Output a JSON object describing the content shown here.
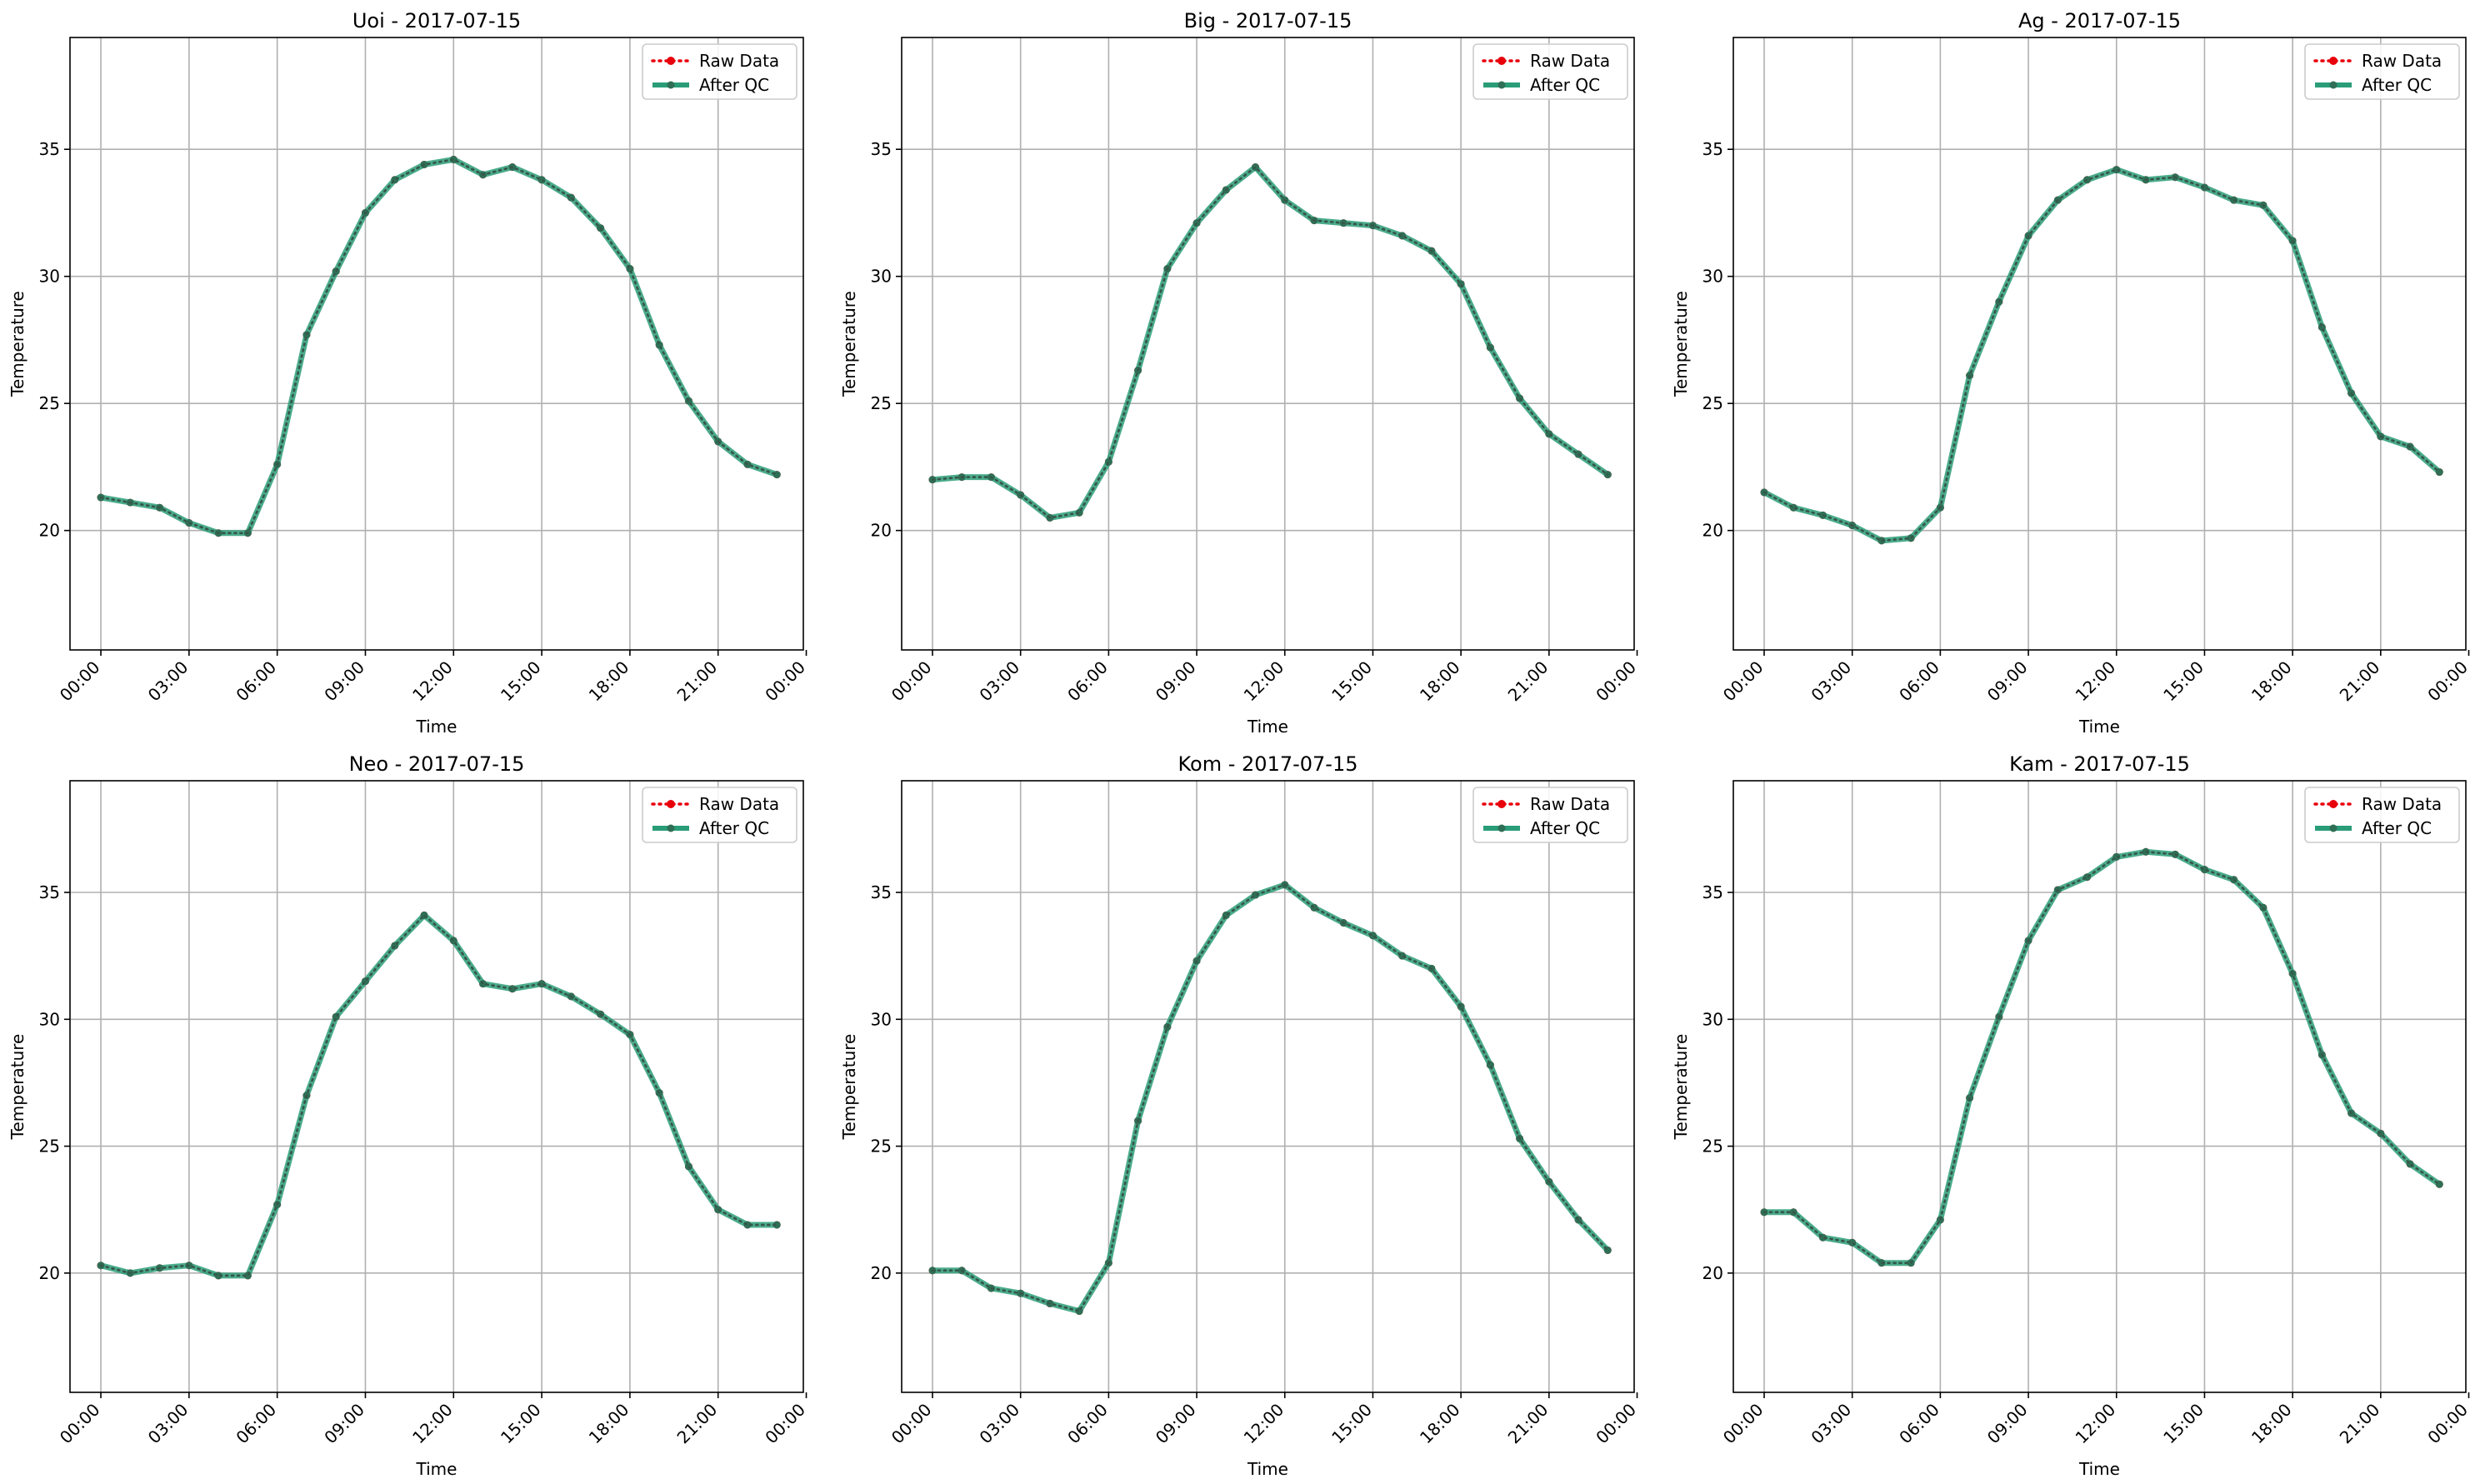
{
  "chart_data": [
    {
      "type": "line",
      "title": "Uoi - 2017-07-15",
      "xlabel": "Time",
      "ylabel": "Temperature",
      "xlim": [
        -1.05,
        23.9
      ],
      "ylim": [
        15.3,
        39.4
      ],
      "xticks": [
        0,
        3,
        6,
        9,
        12,
        15,
        18,
        21,
        24
      ],
      "xticklabels": [
        "00:00",
        "03:00",
        "06:00",
        "09:00",
        "12:00",
        "15:00",
        "18:00",
        "21:00",
        "00:00"
      ],
      "yticks": [
        20,
        25,
        30,
        35
      ],
      "grid": true,
      "legend_position": "top-right",
      "x": [
        0,
        1,
        2,
        3,
        4,
        5,
        6,
        7,
        8,
        9,
        10,
        11,
        12,
        13,
        14,
        15,
        16,
        17,
        18,
        19,
        20,
        21,
        22,
        23
      ],
      "series": [
        {
          "name": "Raw Data",
          "color": "#e8000b",
          "style": "dotted",
          "values": [
            21.3,
            21.1,
            20.9,
            20.3,
            19.9,
            19.9,
            22.6,
            27.7,
            30.2,
            32.5,
            33.8,
            34.4,
            34.6,
            34.0,
            34.3,
            33.8,
            33.1,
            31.9,
            30.3,
            27.3,
            25.1,
            23.5,
            22.6,
            22.2
          ]
        },
        {
          "name": "After QC",
          "color": "#2a9d78",
          "style": "solid",
          "values": [
            21.3,
            21.1,
            20.9,
            20.3,
            19.9,
            19.9,
            22.6,
            27.7,
            30.2,
            32.5,
            33.8,
            34.4,
            34.6,
            34.0,
            34.3,
            33.8,
            33.1,
            31.9,
            30.3,
            27.3,
            25.1,
            23.5,
            22.6,
            22.2
          ]
        }
      ]
    },
    {
      "type": "line",
      "title": "Big - 2017-07-15",
      "xlabel": "Time",
      "ylabel": "Temperature",
      "xlim": [
        -1.05,
        23.9
      ],
      "ylim": [
        15.3,
        39.4
      ],
      "xticks": [
        0,
        3,
        6,
        9,
        12,
        15,
        18,
        21,
        24
      ],
      "xticklabels": [
        "00:00",
        "03:00",
        "06:00",
        "09:00",
        "12:00",
        "15:00",
        "18:00",
        "21:00",
        "00:00"
      ],
      "yticks": [
        20,
        25,
        30,
        35
      ],
      "grid": true,
      "legend_position": "top-right",
      "x": [
        0,
        1,
        2,
        3,
        4,
        5,
        6,
        7,
        8,
        9,
        10,
        11,
        12,
        13,
        14,
        15,
        16,
        17,
        18,
        19,
        20,
        21,
        22,
        23
      ],
      "series": [
        {
          "name": "Raw Data",
          "color": "#e8000b",
          "style": "dotted",
          "values": [
            22.0,
            22.1,
            22.1,
            21.4,
            20.5,
            20.7,
            22.7,
            26.3,
            30.3,
            32.1,
            33.4,
            34.3,
            33.0,
            32.2,
            32.1,
            32.0,
            31.6,
            31.0,
            29.7,
            27.2,
            25.2,
            23.8,
            23.0,
            22.2
          ]
        },
        {
          "name": "After QC",
          "color": "#2a9d78",
          "style": "solid",
          "values": [
            22.0,
            22.1,
            22.1,
            21.4,
            20.5,
            20.7,
            22.7,
            26.3,
            30.3,
            32.1,
            33.4,
            34.3,
            33.0,
            32.2,
            32.1,
            32.0,
            31.6,
            31.0,
            29.7,
            27.2,
            25.2,
            23.8,
            23.0,
            22.2
          ]
        }
      ]
    },
    {
      "type": "line",
      "title": "Ag - 2017-07-15",
      "xlabel": "Time",
      "ylabel": "Temperature",
      "xlim": [
        -1.05,
        23.9
      ],
      "ylim": [
        15.3,
        39.4
      ],
      "xticks": [
        0,
        3,
        6,
        9,
        12,
        15,
        18,
        21,
        24
      ],
      "xticklabels": [
        "00:00",
        "03:00",
        "06:00",
        "09:00",
        "12:00",
        "15:00",
        "18:00",
        "21:00",
        "00:00"
      ],
      "yticks": [
        20,
        25,
        30,
        35
      ],
      "grid": true,
      "legend_position": "top-right",
      "x": [
        0,
        1,
        2,
        3,
        4,
        5,
        6,
        7,
        8,
        9,
        10,
        11,
        12,
        13,
        14,
        15,
        16,
        17,
        18,
        19,
        20,
        21,
        22,
        23
      ],
      "series": [
        {
          "name": "Raw Data",
          "color": "#e8000b",
          "style": "dotted",
          "values": [
            21.5,
            20.9,
            20.6,
            20.2,
            19.6,
            19.7,
            20.9,
            26.1,
            29.0,
            31.6,
            33.0,
            33.8,
            34.2,
            33.8,
            33.9,
            33.5,
            33.0,
            32.8,
            31.4,
            28.0,
            25.4,
            23.7,
            23.3,
            22.3
          ]
        },
        {
          "name": "After QC",
          "color": "#2a9d78",
          "style": "solid",
          "values": [
            21.5,
            20.9,
            20.6,
            20.2,
            19.6,
            19.7,
            20.9,
            26.1,
            29.0,
            31.6,
            33.0,
            33.8,
            34.2,
            33.8,
            33.9,
            33.5,
            33.0,
            32.8,
            31.4,
            28.0,
            25.4,
            23.7,
            23.3,
            22.3
          ]
        }
      ]
    },
    {
      "type": "line",
      "title": "Neo - 2017-07-15",
      "xlabel": "Time",
      "ylabel": "Temperature",
      "xlim": [
        -1.05,
        23.9
      ],
      "ylim": [
        15.3,
        39.4
      ],
      "xticks": [
        0,
        3,
        6,
        9,
        12,
        15,
        18,
        21,
        24
      ],
      "xticklabels": [
        "00:00",
        "03:00",
        "06:00",
        "09:00",
        "12:00",
        "15:00",
        "18:00",
        "21:00",
        "00:00"
      ],
      "yticks": [
        20,
        25,
        30,
        35
      ],
      "grid": true,
      "legend_position": "top-right",
      "x": [
        0,
        1,
        2,
        3,
        4,
        5,
        6,
        7,
        8,
        9,
        10,
        11,
        12,
        13,
        14,
        15,
        16,
        17,
        18,
        19,
        20,
        21,
        22,
        23
      ],
      "series": [
        {
          "name": "Raw Data",
          "color": "#e8000b",
          "style": "dotted",
          "values": [
            20.3,
            20.0,
            20.2,
            20.3,
            19.9,
            19.9,
            22.7,
            27.0,
            30.1,
            31.5,
            32.9,
            34.1,
            33.1,
            31.4,
            31.2,
            31.4,
            30.9,
            30.2,
            29.4,
            27.1,
            24.2,
            22.5,
            21.9,
            21.9
          ]
        },
        {
          "name": "After QC",
          "color": "#2a9d78",
          "style": "solid",
          "values": [
            20.3,
            20.0,
            20.2,
            20.3,
            19.9,
            19.9,
            22.7,
            27.0,
            30.1,
            31.5,
            32.9,
            34.1,
            33.1,
            31.4,
            31.2,
            31.4,
            30.9,
            30.2,
            29.4,
            27.1,
            24.2,
            22.5,
            21.9,
            21.9
          ]
        }
      ]
    },
    {
      "type": "line",
      "title": "Kom - 2017-07-15",
      "xlabel": "Time",
      "ylabel": "Temperature",
      "xlim": [
        -1.05,
        23.9
      ],
      "ylim": [
        15.3,
        39.4
      ],
      "xticks": [
        0,
        3,
        6,
        9,
        12,
        15,
        18,
        21,
        24
      ],
      "xticklabels": [
        "00:00",
        "03:00",
        "06:00",
        "09:00",
        "12:00",
        "15:00",
        "18:00",
        "21:00",
        "00:00"
      ],
      "yticks": [
        20,
        25,
        30,
        35
      ],
      "grid": true,
      "legend_position": "top-right",
      "x": [
        0,
        1,
        2,
        3,
        4,
        5,
        6,
        7,
        8,
        9,
        10,
        11,
        12,
        13,
        14,
        15,
        16,
        17,
        18,
        19,
        20,
        21,
        22,
        23
      ],
      "series": [
        {
          "name": "Raw Data",
          "color": "#e8000b",
          "style": "dotted",
          "values": [
            20.1,
            20.1,
            19.4,
            19.2,
            18.8,
            18.5,
            20.4,
            26.0,
            29.7,
            32.3,
            34.1,
            34.9,
            35.3,
            34.4,
            33.8,
            33.3,
            32.5,
            32.0,
            30.5,
            28.2,
            25.3,
            23.6,
            22.1,
            20.9
          ]
        },
        {
          "name": "After QC",
          "color": "#2a9d78",
          "style": "solid",
          "values": [
            20.1,
            20.1,
            19.4,
            19.2,
            18.8,
            18.5,
            20.4,
            26.0,
            29.7,
            32.3,
            34.1,
            34.9,
            35.3,
            34.4,
            33.8,
            33.3,
            32.5,
            32.0,
            30.5,
            28.2,
            25.3,
            23.6,
            22.1,
            20.9
          ]
        }
      ]
    },
    {
      "type": "line",
      "title": "Kam - 2017-07-15",
      "xlabel": "Time",
      "ylabel": "Temperature",
      "xlim": [
        -1.05,
        23.9
      ],
      "ylim": [
        15.3,
        39.4
      ],
      "xticks": [
        0,
        3,
        6,
        9,
        12,
        15,
        18,
        21,
        24
      ],
      "xticklabels": [
        "00:00",
        "03:00",
        "06:00",
        "09:00",
        "12:00",
        "15:00",
        "18:00",
        "21:00",
        "00:00"
      ],
      "yticks": [
        20,
        25,
        30,
        35
      ],
      "grid": true,
      "legend_position": "top-right",
      "x": [
        0,
        1,
        2,
        3,
        4,
        5,
        6,
        7,
        8,
        9,
        10,
        11,
        12,
        13,
        14,
        15,
        16,
        17,
        18,
        19,
        20,
        21,
        22,
        23
      ],
      "series": [
        {
          "name": "Raw Data",
          "color": "#e8000b",
          "style": "dotted",
          "values": [
            22.4,
            22.4,
            21.4,
            21.2,
            20.4,
            20.4,
            22.1,
            26.9,
            30.1,
            33.1,
            35.1,
            35.6,
            36.4,
            36.6,
            36.5,
            35.9,
            35.5,
            34.4,
            31.8,
            28.6,
            26.3,
            25.5,
            24.3,
            23.5
          ]
        },
        {
          "name": "After QC",
          "color": "#2a9d78",
          "style": "solid",
          "values": [
            22.4,
            22.4,
            21.4,
            21.2,
            20.4,
            20.4,
            22.1,
            26.9,
            30.1,
            33.1,
            35.1,
            35.6,
            36.4,
            36.6,
            36.5,
            35.9,
            35.5,
            34.4,
            31.8,
            28.6,
            26.3,
            25.5,
            24.3,
            23.5
          ]
        }
      ]
    }
  ]
}
